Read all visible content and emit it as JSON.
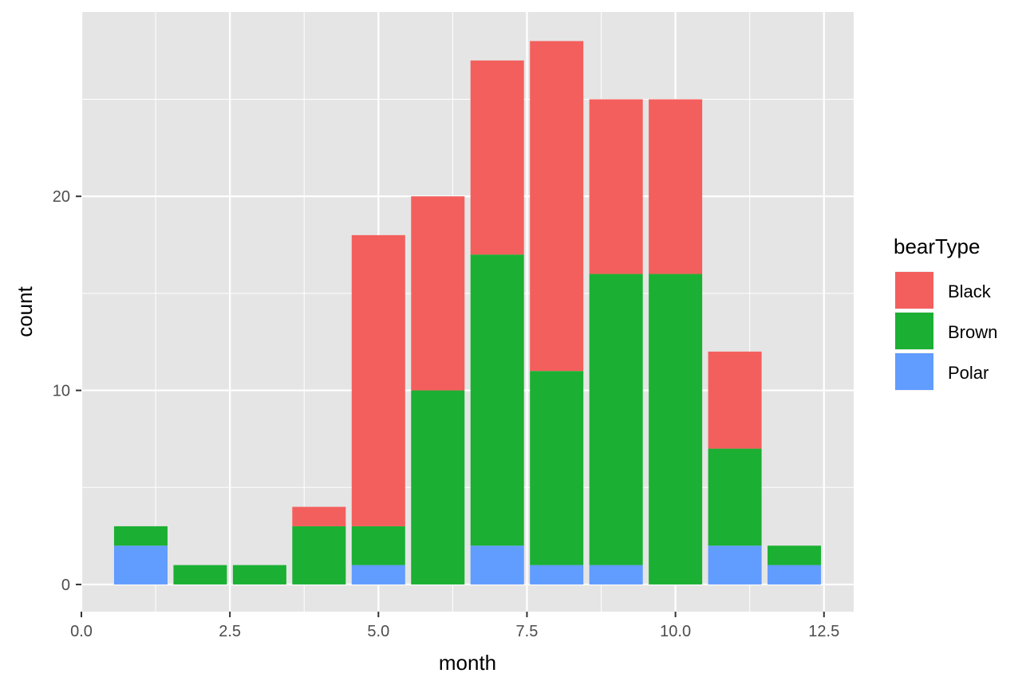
{
  "chart_data": {
    "type": "bar",
    "stacked": true,
    "xlabel": "month",
    "ylabel": "count",
    "xlim": [
      0,
      13
    ],
    "ylim": [
      -1.4,
      29.5
    ],
    "x_ticks": [
      0.0,
      2.5,
      5.0,
      7.5,
      10.0,
      12.5
    ],
    "x_tick_labels": [
      "0.0",
      "2.5",
      "5.0",
      "7.5",
      "10.0",
      "12.5"
    ],
    "y_ticks": [
      0,
      10,
      20
    ],
    "y_tick_labels": [
      "0",
      "10",
      "20"
    ],
    "x": [
      1,
      2,
      3,
      4,
      5,
      6,
      7,
      8,
      9,
      10,
      11,
      12
    ],
    "series": [
      {
        "name": "Polar",
        "color": "#619CFF",
        "values": [
          2,
          0,
          0,
          0,
          1,
          0,
          2,
          1,
          1,
          0,
          2,
          1
        ]
      },
      {
        "name": "Brown",
        "color": "#1BB033",
        "values": [
          1,
          1,
          1,
          3,
          2,
          10,
          15,
          10,
          15,
          16,
          5,
          1
        ]
      },
      {
        "name": "Black",
        "color": "#F35F5C",
        "values": [
          0,
          0,
          0,
          1,
          15,
          10,
          10,
          17,
          9,
          9,
          5,
          0
        ]
      }
    ],
    "legend": {
      "title": "bearType",
      "position": "right",
      "entries": [
        {
          "label": "Black",
          "color": "#F35F5C"
        },
        {
          "label": "Brown",
          "color": "#1BB033"
        },
        {
          "label": "Polar",
          "color": "#619CFF"
        }
      ]
    },
    "panel_background": "#E5E5E5",
    "grid": true,
    "grid_color": "#FFFFFF"
  }
}
